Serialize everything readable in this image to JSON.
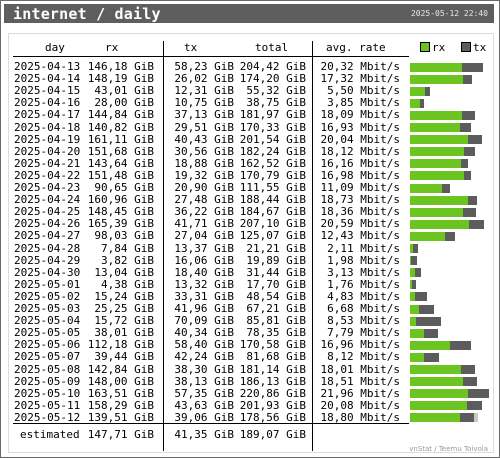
{
  "header": {
    "title": "internet / daily",
    "timestamp": "2025-05-12 22:40"
  },
  "columns": {
    "day": "day",
    "rx": "rx",
    "tx": "tx",
    "total": "total",
    "avg": "avg. rate"
  },
  "legend": {
    "rx": "rx",
    "tx": "tx"
  },
  "colors": {
    "rx": "#6cc420",
    "tx": "#5c5c5c",
    "estimate": "#c8c8c8",
    "title_bg": "#5e5e5e"
  },
  "rows": [
    {
      "day": "2025-04-13",
      "rx": "146,18 GiB",
      "tx": "58,23 GiB",
      "total": "204,42 GiB",
      "avg": "20,32 Mbit/s"
    },
    {
      "day": "2025-04-14",
      "rx": "148,19 GiB",
      "tx": "26,02 GiB",
      "total": "174,20 GiB",
      "avg": "17,32 Mbit/s"
    },
    {
      "day": "2025-04-15",
      "rx": "43,01 GiB",
      "tx": "12,31 GiB",
      "total": "55,32 GiB",
      "avg": "5,50 Mbit/s"
    },
    {
      "day": "2025-04-16",
      "rx": "28,00 GiB",
      "tx": "10,75 GiB",
      "total": "38,75 GiB",
      "avg": "3,85 Mbit/s"
    },
    {
      "day": "2025-04-17",
      "rx": "144,84 GiB",
      "tx": "37,13 GiB",
      "total": "181,97 GiB",
      "avg": "18,09 Mbit/s"
    },
    {
      "day": "2025-04-18",
      "rx": "140,82 GiB",
      "tx": "29,51 GiB",
      "total": "170,33 GiB",
      "avg": "16,93 Mbit/s"
    },
    {
      "day": "2025-04-19",
      "rx": "161,11 GiB",
      "tx": "40,43 GiB",
      "total": "201,54 GiB",
      "avg": "20,04 Mbit/s"
    },
    {
      "day": "2025-04-20",
      "rx": "151,68 GiB",
      "tx": "30,56 GiB",
      "total": "182,24 GiB",
      "avg": "18,12 Mbit/s"
    },
    {
      "day": "2025-04-21",
      "rx": "143,64 GiB",
      "tx": "18,88 GiB",
      "total": "162,52 GiB",
      "avg": "16,16 Mbit/s"
    },
    {
      "day": "2025-04-22",
      "rx": "151,48 GiB",
      "tx": "19,32 GiB",
      "total": "170,79 GiB",
      "avg": "16,98 Mbit/s"
    },
    {
      "day": "2025-04-23",
      "rx": "90,65 GiB",
      "tx": "20,90 GiB",
      "total": "111,55 GiB",
      "avg": "11,09 Mbit/s"
    },
    {
      "day": "2025-04-24",
      "rx": "160,96 GiB",
      "tx": "27,48 GiB",
      "total": "188,44 GiB",
      "avg": "18,73 Mbit/s"
    },
    {
      "day": "2025-04-25",
      "rx": "148,45 GiB",
      "tx": "36,22 GiB",
      "total": "184,67 GiB",
      "avg": "18,36 Mbit/s"
    },
    {
      "day": "2025-04-26",
      "rx": "165,39 GiB",
      "tx": "41,71 GiB",
      "total": "207,10 GiB",
      "avg": "20,59 Mbit/s"
    },
    {
      "day": "2025-04-27",
      "rx": "98,03 GiB",
      "tx": "27,04 GiB",
      "total": "125,07 GiB",
      "avg": "12,43 Mbit/s"
    },
    {
      "day": "2025-04-28",
      "rx": "7,84 GiB",
      "tx": "13,37 GiB",
      "total": "21,21 GiB",
      "avg": "2,11 Mbit/s"
    },
    {
      "day": "2025-04-29",
      "rx": "3,82 GiB",
      "tx": "16,06 GiB",
      "total": "19,89 GiB",
      "avg": "1,98 Mbit/s"
    },
    {
      "day": "2025-04-30",
      "rx": "13,04 GiB",
      "tx": "18,40 GiB",
      "total": "31,44 GiB",
      "avg": "3,13 Mbit/s"
    },
    {
      "day": "2025-05-01",
      "rx": "4,38 GiB",
      "tx": "13,32 GiB",
      "total": "17,70 GiB",
      "avg": "1,76 Mbit/s"
    },
    {
      "day": "2025-05-02",
      "rx": "15,24 GiB",
      "tx": "33,31 GiB",
      "total": "48,54 GiB",
      "avg": "4,83 Mbit/s"
    },
    {
      "day": "2025-05-03",
      "rx": "25,25 GiB",
      "tx": "41,96 GiB",
      "total": "67,21 GiB",
      "avg": "6,68 Mbit/s"
    },
    {
      "day": "2025-05-04",
      "rx": "15,72 GiB",
      "tx": "70,09 GiB",
      "total": "85,81 GiB",
      "avg": "8,53 Mbit/s"
    },
    {
      "day": "2025-05-05",
      "rx": "38,01 GiB",
      "tx": "40,34 GiB",
      "total": "78,35 GiB",
      "avg": "7,79 Mbit/s"
    },
    {
      "day": "2025-05-06",
      "rx": "112,18 GiB",
      "tx": "58,40 GiB",
      "total": "170,58 GiB",
      "avg": "16,96 Mbit/s"
    },
    {
      "day": "2025-05-07",
      "rx": "39,44 GiB",
      "tx": "42,24 GiB",
      "total": "81,68 GiB",
      "avg": "8,12 Mbit/s"
    },
    {
      "day": "2025-05-08",
      "rx": "142,84 GiB",
      "tx": "38,30 GiB",
      "total": "181,14 GiB",
      "avg": "18,01 Mbit/s"
    },
    {
      "day": "2025-05-09",
      "rx": "148,00 GiB",
      "tx": "38,13 GiB",
      "total": "186,13 GiB",
      "avg": "18,51 Mbit/s"
    },
    {
      "day": "2025-05-10",
      "rx": "163,51 GiB",
      "tx": "57,35 GiB",
      "total": "220,86 GiB",
      "avg": "21,96 Mbit/s"
    },
    {
      "day": "2025-05-11",
      "rx": "158,29 GiB",
      "tx": "43,63 GiB",
      "total": "201,93 GiB",
      "avg": "20,08 Mbit/s"
    },
    {
      "day": "2025-05-12",
      "rx": "139,51 GiB",
      "tx": "39,06 GiB",
      "total": "178,56 GiB",
      "avg": "18,80 Mbit/s"
    }
  ],
  "estimate": {
    "label": "estimated",
    "rx": "147,71 GiB",
    "tx": "41,35 GiB",
    "total": "189,07 GiB"
  },
  "credit": "vnStat / Teemu Toivola",
  "chart_data": {
    "type": "bar",
    "stacked": true,
    "orientation": "horizontal",
    "unit": "GiB",
    "categories": [
      "2025-04-13",
      "2025-04-14",
      "2025-04-15",
      "2025-04-16",
      "2025-04-17",
      "2025-04-18",
      "2025-04-19",
      "2025-04-20",
      "2025-04-21",
      "2025-04-22",
      "2025-04-23",
      "2025-04-24",
      "2025-04-25",
      "2025-04-26",
      "2025-04-27",
      "2025-04-28",
      "2025-04-29",
      "2025-04-30",
      "2025-05-01",
      "2025-05-02",
      "2025-05-03",
      "2025-05-04",
      "2025-05-05",
      "2025-05-06",
      "2025-05-07",
      "2025-05-08",
      "2025-05-09",
      "2025-05-10",
      "2025-05-11",
      "2025-05-12"
    ],
    "series": [
      {
        "name": "rx",
        "values": [
          146.18,
          148.19,
          43.01,
          28.0,
          144.84,
          140.82,
          161.11,
          151.68,
          143.64,
          151.48,
          90.65,
          160.96,
          148.45,
          165.39,
          98.03,
          7.84,
          3.82,
          13.04,
          4.38,
          15.24,
          25.25,
          15.72,
          38.01,
          112.18,
          39.44,
          142.84,
          148.0,
          163.51,
          158.29,
          139.51
        ]
      },
      {
        "name": "tx",
        "values": [
          58.23,
          26.02,
          12.31,
          10.75,
          37.13,
          29.51,
          40.43,
          30.56,
          18.88,
          19.32,
          20.9,
          27.48,
          36.22,
          41.71,
          27.04,
          13.37,
          16.06,
          18.4,
          13.32,
          33.31,
          41.96,
          70.09,
          40.34,
          58.4,
          42.24,
          38.3,
          38.13,
          57.35,
          43.63,
          39.06
        ]
      }
    ],
    "estimate_last_total": 189.07,
    "xlim": [
      0,
      220.86
    ],
    "legend": "top-right"
  }
}
